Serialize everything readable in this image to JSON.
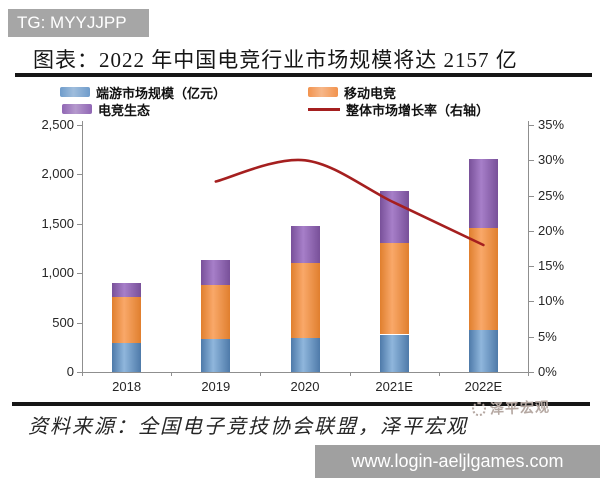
{
  "overlays": {
    "tg_badge": "TG: MYYJJPP",
    "url_bar": "www.login-aeljlgames.com"
  },
  "title": "图表：2022 年中国电竞行业市场规模将达 2157 亿",
  "legend": {
    "items": [
      {
        "label": "端游市场规模（亿元）",
        "color": "#6f9ccb",
        "swatch": "box"
      },
      {
        "label": "移动电竞",
        "color": "#f2934e",
        "swatch": "box"
      },
      {
        "label": "电竞生态",
        "color": "#9066b4",
        "swatch": "box"
      },
      {
        "label": "整体市场增长率（右轴）",
        "color": "#a51f1f",
        "swatch": "line"
      }
    ]
  },
  "chart_data": {
    "type": "bar",
    "subtype": "stacked-bars-with-line",
    "categories": [
      "2018",
      "2019",
      "2020",
      "2021E",
      "2022E"
    ],
    "series": [
      {
        "name": "端游市场规模（亿元）",
        "type": "bar",
        "color_edge": "#4e7aa9",
        "color_mid": "#8fb6dc",
        "values": [
          290,
          335,
          345,
          380,
          425
        ]
      },
      {
        "name": "移动电竞",
        "type": "bar",
        "color_edge": "#e07f2e",
        "color_mid": "#f9a869",
        "values": [
          470,
          550,
          760,
          925,
          1035
        ]
      },
      {
        "name": "电竞生态",
        "type": "bar",
        "color_edge": "#785099",
        "color_mid": "#a77fc9",
        "values": [
          140,
          250,
          370,
          530,
          697
        ]
      },
      {
        "name": "整体市场增长率（右轴）",
        "type": "line",
        "axis": "right",
        "color": "#a51f1f",
        "x": [
          "2019",
          "2020",
          "2021E",
          "2022E"
        ],
        "values_pct": [
          27,
          30,
          24,
          18
        ]
      }
    ],
    "stack_totals": [
      900,
      1135,
      1475,
      1835,
      2157
    ],
    "left_axis": {
      "min": 0,
      "max": 2500,
      "step": 500,
      "tick_labels": [
        "0",
        "500",
        "1,000",
        "1,500",
        "2,000",
        "2,500"
      ]
    },
    "right_axis": {
      "min": 0,
      "max": 35,
      "step": 5,
      "tick_labels": [
        "0%",
        "5%",
        "10%",
        "15%",
        "20%",
        "25%",
        "30%",
        "35%"
      ]
    },
    "grid": false,
    "legend_position": "top"
  },
  "footer": {
    "source": "资料来源：全国电子竞技协会联盟，泽平宏观",
    "watermark": "泽平宏观"
  }
}
